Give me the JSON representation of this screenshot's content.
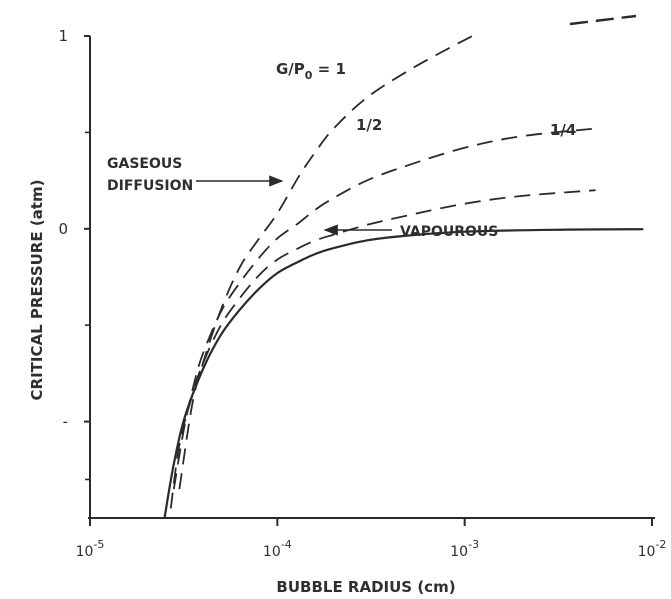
{
  "chart_data": {
    "type": "line",
    "title": "",
    "xlabel": "BUBBLE RADIUS (cm)",
    "ylabel": "CRITICAL PRESSURE (atm)",
    "x_scale": "log",
    "xlim": [
      1e-05,
      0.01
    ],
    "ylim": [
      -1.5,
      1.0
    ],
    "grid": false,
    "x_ticks": [
      {
        "value": 1e-05,
        "base": "10",
        "exp": "-5"
      },
      {
        "value": 0.0001,
        "base": "10",
        "exp": "-4"
      },
      {
        "value": 0.001,
        "base": "10",
        "exp": "-3"
      },
      {
        "value": 0.01,
        "base": "10",
        "exp": "-2"
      }
    ],
    "y_tick_labels": [
      {
        "value": 1,
        "label": "1"
      },
      {
        "value": 0,
        "label": "0"
      },
      {
        "value": -1,
        "label": "-"
      }
    ],
    "y_minor_ticks": [
      0.5,
      -0.5,
      -1.3
    ],
    "series": [
      {
        "name": "VAPOUROUS",
        "style": "solid",
        "color": "#2a2a2a",
        "x": [
          2.5e-05,
          2.8e-05,
          3.2e-05,
          4e-05,
          5e-05,
          6.3e-05,
          8e-05,
          0.0001,
          0.00013,
          0.00016,
          0.0002,
          0.0003,
          0.0005,
          0.001,
          0.003,
          0.009
        ],
        "y": [
          -1.5,
          -1.22,
          -0.98,
          -0.73,
          -0.55,
          -0.42,
          -0.31,
          -0.23,
          -0.17,
          -0.13,
          -0.1,
          -0.06,
          -0.035,
          -0.015,
          -0.005,
          -0.002
        ]
      },
      {
        "name": "1/4",
        "style": "dashed",
        "color": "#2a2a2a",
        "x": [
          2.7e-05,
          3e-05,
          3.5e-05,
          4e-05,
          5e-05,
          6.3e-05,
          8e-05,
          0.0001,
          0.00013,
          0.00016,
          0.0002,
          0.0003,
          0.0005,
          0.001,
          0.002,
          0.005
        ],
        "y": [
          -1.45,
          -1.12,
          -0.87,
          -0.7,
          -0.5,
          -0.36,
          -0.24,
          -0.16,
          -0.1,
          -0.06,
          -0.03,
          0.02,
          0.07,
          0.13,
          0.17,
          0.2
        ]
      },
      {
        "name": "1/2",
        "style": "dashed",
        "color": "#2a2a2a",
        "x": [
          2.8e-05,
          3.2e-05,
          3.6e-05,
          4e-05,
          5e-05,
          6.3e-05,
          8e-05,
          0.0001,
          0.00013,
          0.00016,
          0.0002,
          0.0003,
          0.0005,
          0.001,
          0.002,
          0.005
        ],
        "y": [
          -1.35,
          -1.02,
          -0.8,
          -0.65,
          -0.43,
          -0.28,
          -0.15,
          -0.05,
          0.03,
          0.1,
          0.16,
          0.25,
          0.33,
          0.42,
          0.48,
          0.52
        ]
      },
      {
        "name": "G/P0 = 1",
        "style": "dashed",
        "color": "#2a2a2a",
        "x": [
          3e-05,
          3.5e-05,
          4e-05,
          5e-05,
          6.3e-05,
          8e-05,
          0.0001,
          0.00013,
          0.00016,
          0.0002,
          0.0003,
          0.0005,
          0.0008,
          0.0011
        ],
        "y": [
          -1.35,
          -0.92,
          -0.7,
          -0.42,
          -0.2,
          -0.05,
          0.08,
          0.27,
          0.4,
          0.52,
          0.68,
          0.82,
          0.93,
          1.0
        ]
      }
    ],
    "annotations": {
      "g_ratio": {
        "prefix": "G/P",
        "sub": "0",
        "suffix": " = 1"
      },
      "half": "1/2",
      "quarter": "1/4",
      "gaseous_line1": "GASEOUS",
      "gaseous_line2": "DIFFUSION",
      "vapourous": "VAPOUROUS"
    }
  }
}
